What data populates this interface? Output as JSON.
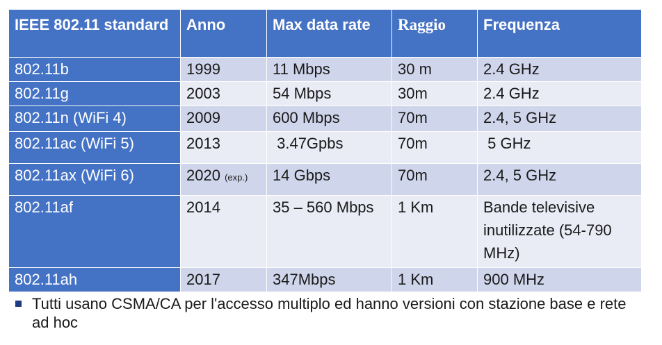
{
  "headers": [
    "IEEE 802.11 standard",
    "Anno",
    "Max data rate",
    "Raggio",
    "Frequenza"
  ],
  "rows": [
    {
      "standard": "802.11b",
      "anno": "1999",
      "anno_note": "",
      "rate": "11 Mbps",
      "raggio": "30 m",
      "freq": "2.4 GHz"
    },
    {
      "standard": "802.11g",
      "anno": "2003",
      "anno_note": "",
      "rate": "54 Mbps",
      "raggio": "30m",
      "freq": "2.4 GHz"
    },
    {
      "standard": "802.11n  (WiFi 4)",
      "anno": "2009",
      "anno_note": "",
      "rate": "600 Mbps",
      "raggio": "70m",
      "freq": "2.4, 5 GHz"
    },
    {
      "standard": "802.11ac (WiFi 5)",
      "anno": "2013",
      "anno_note": "",
      "rate": " 3.47Gpbs",
      "raggio": "70m",
      "freq": " 5 GHz"
    },
    {
      "standard": "802.11ax (WiFi 6)",
      "anno": "2020",
      "anno_note": "(exp.)",
      "rate": "14 Gbps",
      "raggio": "70m",
      "freq": "2.4, 5 GHz"
    },
    {
      "standard": "802.11af",
      "anno": "2014",
      "anno_note": "",
      "rate": "35 – 560 Mbps",
      "raggio": "1 Km",
      "freq": "Bande televisive inutilizzate (54-790 MHz)"
    },
    {
      "standard": "802.11ah",
      "anno": "2017",
      "anno_note": "",
      "rate": "347Mbps",
      "raggio": "1 Km",
      "freq": "900 MHz"
    }
  ],
  "bullet": "Tutti usano CSMA/CA per l'accesso multiplo ed hanno versioni con stazione base e rete ad hoc",
  "colors": {
    "header_bg": "#4472c4",
    "row_odd": "#cfd5ea",
    "row_even": "#e9ebf5",
    "bullet": "#1f3b84"
  }
}
